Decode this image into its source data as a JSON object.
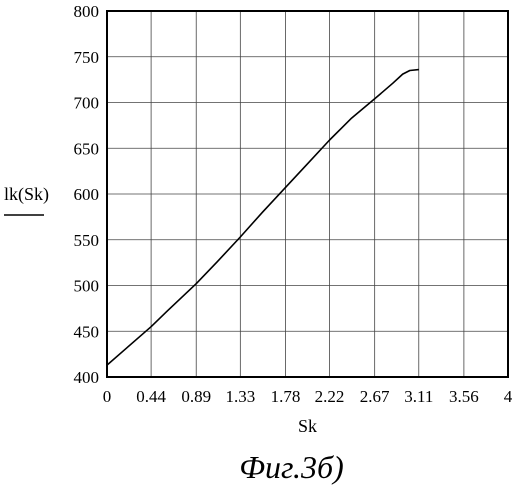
{
  "chart_data": {
    "type": "line",
    "title": "",
    "xlabel": "Sk",
    "ylabel": "lk(Sk)",
    "xlim": [
      0,
      4
    ],
    "ylim": [
      400,
      800
    ],
    "x_ticks": [
      0,
      0.44,
      0.89,
      1.33,
      1.78,
      2.22,
      2.67,
      3.11,
      3.56,
      4
    ],
    "x_tick_labels": [
      "0",
      "0.44",
      "0.89",
      "1.33",
      "1.78",
      "2.22",
      "2.67",
      "3.11",
      "3.56",
      "4"
    ],
    "y_ticks": [
      400,
      450,
      500,
      550,
      600,
      650,
      700,
      750,
      800
    ],
    "y_tick_labels": [
      "400",
      "450",
      "500",
      "550",
      "600",
      "650",
      "700",
      "750",
      "800"
    ],
    "grid": true,
    "legend": "none",
    "series": [
      {
        "x": [
          0,
          0.2,
          0.44,
          0.6,
          0.89,
          1.1,
          1.33,
          1.55,
          1.78,
          2.0,
          2.22,
          2.44,
          2.67,
          2.85,
          2.95,
          3.02,
          3.11
        ],
        "y": [
          413,
          432,
          455,
          472,
          502,
          526,
          553,
          580,
          607,
          633,
          659,
          683,
          704,
          721,
          731,
          735,
          736
        ]
      }
    ],
    "caption": "Фиг.3б)"
  }
}
